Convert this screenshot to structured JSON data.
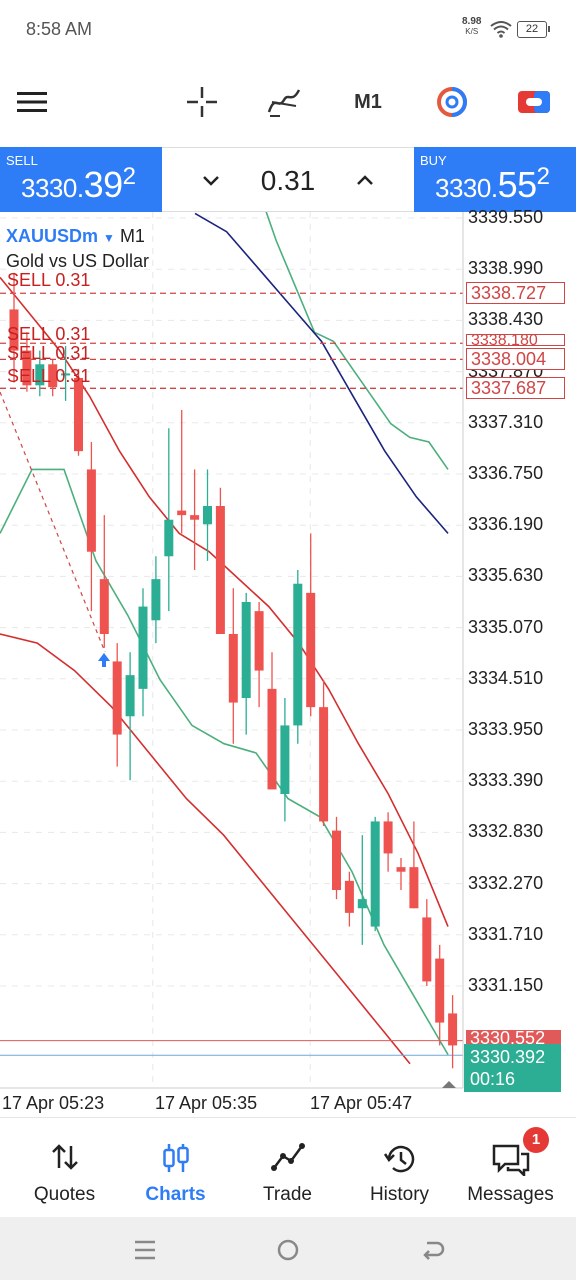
{
  "status_bar": {
    "time": "8:58 AM",
    "net_speed": "8.98",
    "net_unit": "K/S",
    "battery": "22"
  },
  "toolbar": {
    "timeframe": "M1",
    "icons": [
      "menu-icon",
      "crosshair-icon",
      "indicators-icon",
      "objects-icon",
      "one-click-trading-icon"
    ]
  },
  "trade_panel": {
    "sell_label": "SELL",
    "sell_price_main": "3330.",
    "sell_price_big": "39",
    "sell_price_sup": "2",
    "buy_label": "BUY",
    "buy_price_main": "3330.",
    "buy_price_big": "55",
    "buy_price_sup": "2",
    "volume": "0.31"
  },
  "chart_info": {
    "symbol": "XAUUSDm",
    "timeframe": "M1",
    "description": "Gold vs US Dollar"
  },
  "order_labels": {
    "o1": "SELL 0.31",
    "o2": "SELL 0.31",
    "o3": "SELL 0.31",
    "o4": "SELL 0.31"
  },
  "position_tags": {
    "p1": "3338.727",
    "p2": "3338.180",
    "p3": "3338.004",
    "p4": "3337.687"
  },
  "current": {
    "ask": "3330.552",
    "bid": "3330.392",
    "timer": "00:16"
  },
  "chart_data": {
    "type": "candlestick",
    "symbol": "XAUUSDm",
    "timeframe": "M1",
    "price_axis": [
      "3339.550",
      "3338.990",
      "3338.430",
      "3337.870",
      "3337.310",
      "3336.750",
      "3336.190",
      "3335.630",
      "3335.070",
      "3334.510",
      "3333.950",
      "3333.390",
      "3332.830",
      "3332.270",
      "3331.710",
      "3331.150"
    ],
    "time_axis": [
      "17 Apr 05:23",
      "17 Apr 05:35",
      "17 Apr 05:47"
    ],
    "ylim": [
      3330.1,
      3339.7
    ],
    "colors": {
      "bull": "#2bae93",
      "bear": "#ef5350",
      "bands_outer": "#4caf7d",
      "bands_red": "#d32f2f",
      "ma_blue": "#1a237e"
    },
    "candles": [
      {
        "o": 3338.55,
        "h": 3338.95,
        "l": 3337.75,
        "c": 3338.1
      },
      {
        "o": 3338.1,
        "h": 3338.3,
        "l": 3337.65,
        "c": 3337.72
      },
      {
        "o": 3337.72,
        "h": 3338.1,
        "l": 3337.6,
        "c": 3337.95
      },
      {
        "o": 3337.95,
        "h": 3338.0,
        "l": 3337.6,
        "c": 3337.7
      },
      {
        "o": 3337.85,
        "h": 3338.15,
        "l": 3337.55,
        "c": 3337.85
      },
      {
        "o": 3337.8,
        "h": 3337.9,
        "l": 3336.95,
        "c": 3337.0
      },
      {
        "o": 3336.8,
        "h": 3337.1,
        "l": 3335.25,
        "c": 3335.9
      },
      {
        "o": 3335.6,
        "h": 3336.3,
        "l": 3334.85,
        "c": 3335.0
      },
      {
        "o": 3334.7,
        "h": 3334.9,
        "l": 3333.55,
        "c": 3333.9
      },
      {
        "o": 3334.1,
        "h": 3334.8,
        "l": 3333.4,
        "c": 3334.55
      },
      {
        "o": 3334.4,
        "h": 3335.5,
        "l": 3334.1,
        "c": 3335.3
      },
      {
        "o": 3335.15,
        "h": 3335.85,
        "l": 3334.9,
        "c": 3335.6
      },
      {
        "o": 3335.85,
        "h": 3337.25,
        "l": 3335.25,
        "c": 3336.25
      },
      {
        "o": 3336.35,
        "h": 3337.45,
        "l": 3336.1,
        "c": 3336.3
      },
      {
        "o": 3336.3,
        "h": 3336.8,
        "l": 3335.7,
        "c": 3336.25
      },
      {
        "o": 3336.2,
        "h": 3336.8,
        "l": 3335.8,
        "c": 3336.4
      },
      {
        "o": 3336.4,
        "h": 3336.6,
        "l": 3335.0,
        "c": 3335.0
      },
      {
        "o": 3335.0,
        "h": 3335.5,
        "l": 3333.8,
        "c": 3334.25
      },
      {
        "o": 3334.3,
        "h": 3335.45,
        "l": 3333.9,
        "c": 3335.35
      },
      {
        "o": 3335.25,
        "h": 3335.35,
        "l": 3334.2,
        "c": 3334.6
      },
      {
        "o": 3334.4,
        "h": 3334.8,
        "l": 3333.3,
        "c": 3333.3
      },
      {
        "o": 3333.25,
        "h": 3334.3,
        "l": 3332.95,
        "c": 3334.0
      },
      {
        "o": 3334.0,
        "h": 3335.7,
        "l": 3333.8,
        "c": 3335.55
      },
      {
        "o": 3335.45,
        "h": 3336.1,
        "l": 3334.1,
        "c": 3334.2
      },
      {
        "o": 3334.2,
        "h": 3334.5,
        "l": 3332.9,
        "c": 3332.95
      },
      {
        "o": 3332.85,
        "h": 3333.0,
        "l": 3332.1,
        "c": 3332.2
      },
      {
        "o": 3332.3,
        "h": 3332.4,
        "l": 3331.8,
        "c": 3331.95
      },
      {
        "o": 3332.0,
        "h": 3332.8,
        "l": 3331.6,
        "c": 3332.1
      },
      {
        "o": 3331.8,
        "h": 3333.0,
        "l": 3331.75,
        "c": 3332.95
      },
      {
        "o": 3332.95,
        "h": 3333.05,
        "l": 3332.4,
        "c": 3332.6
      },
      {
        "o": 3332.45,
        "h": 3332.55,
        "l": 3332.2,
        "c": 3332.4
      },
      {
        "o": 3332.45,
        "h": 3332.95,
        "l": 3332.0,
        "c": 3332.0
      },
      {
        "o": 3331.9,
        "h": 3332.1,
        "l": 3331.15,
        "c": 3331.2
      },
      {
        "o": 3331.45,
        "h": 3331.6,
        "l": 3330.5,
        "c": 3330.75
      },
      {
        "o": 3330.85,
        "h": 3331.05,
        "l": 3330.25,
        "c": 3330.5
      }
    ],
    "bb_upper": [
      3341.2,
      3340.9,
      3340.5,
      3339.9,
      3339.3,
      3338.8,
      3338.3,
      3338.2,
      3337.9,
      3337.6,
      3337.3,
      3337.15,
      3337.1,
      3336.8
    ],
    "bb_red_upper": [
      3338.9,
      3338.5,
      3338.1,
      3337.6,
      3337.0,
      3336.5,
      3336.1,
      3335.9,
      3335.6,
      3335.3,
      3334.9,
      3334.4,
      3333.8,
      3333.25,
      3332.6,
      3331.8
    ],
    "bb_red_lower": [
      3335.0,
      3334.9,
      3334.6,
      3334.2,
      3333.7,
      3333.2,
      3332.8,
      3332.3,
      3331.8,
      3331.3,
      3330.8,
      3330.3
    ],
    "bb_lower": [
      3336.1,
      3336.8,
      3336.8,
      3335.8,
      3335.2,
      3334.5,
      3334.0,
      3333.8,
      3333.7,
      3333.2,
      3333.0,
      3332.4,
      3331.6,
      3331.0,
      3330.4
    ],
    "ma_blue": [
      3339.6,
      3339.4,
      3339.0,
      3338.6,
      3338.2,
      3337.6,
      3337.0,
      3336.5,
      3336.1
    ],
    "orders": [
      {
        "side": "SELL",
        "volume": "0.31",
        "price": 3338.727
      },
      {
        "side": "SELL",
        "volume": "0.31",
        "price": 3338.18
      },
      {
        "side": "SELL",
        "volume": "0.31",
        "price": 3338.004
      },
      {
        "side": "SELL",
        "volume": "0.31",
        "price": 3337.687
      }
    ],
    "bid": 3330.392,
    "ask": 3330.552
  },
  "bottom_nav": {
    "quotes": "Quotes",
    "charts": "Charts",
    "trade": "Trade",
    "history": "History",
    "messages": "Messages",
    "messages_badge": "1"
  }
}
